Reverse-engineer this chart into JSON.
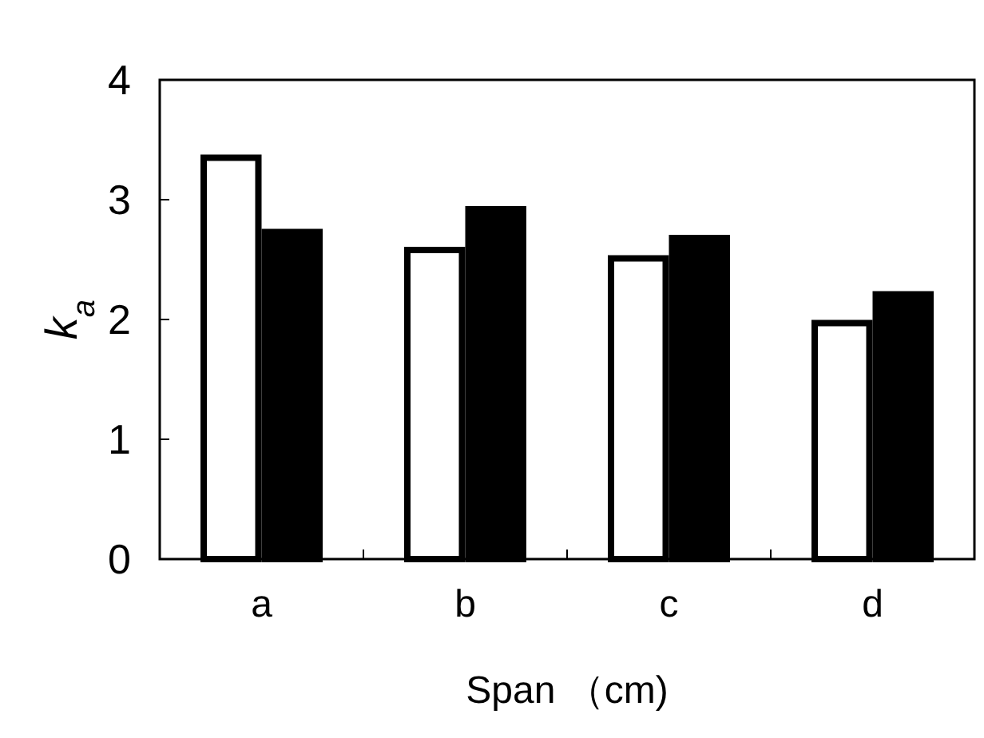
{
  "chart_data": {
    "type": "bar",
    "xlabel": "Span （cm)",
    "ylabel": "k$_{a}$",
    "categories": [
      "a",
      "b",
      "c",
      "d"
    ],
    "series": [
      {
        "color": "#ffffff",
        "values": [
          3.35,
          2.58,
          2.51,
          1.97
        ]
      },
      {
        "color": "#000000",
        "values": [
          2.73,
          2.92,
          2.68,
          2.21
        ]
      }
    ],
    "ylim": [
      0,
      4
    ],
    "yticks": [
      0,
      1,
      2,
      3,
      4
    ],
    "grid": false
  }
}
